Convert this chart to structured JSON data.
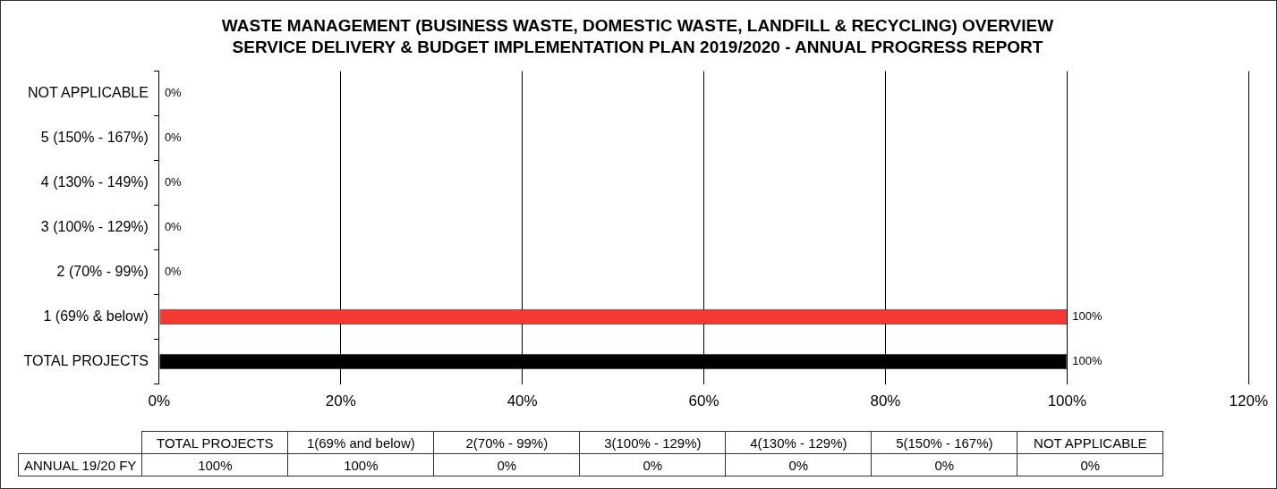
{
  "chart_data": {
    "type": "bar",
    "orientation": "horizontal",
    "title": "WASTE MANAGEMENT (BUSINESS WASTE, DOMESTIC WASTE, LANDFILL & RECYCLING) OVERVIEW",
    "subtitle": "SERVICE DELIVERY & BUDGET IMPLEMENTATION PLAN 2019/2020 - ANNUAL PROGRESS REPORT",
    "categories": [
      "NOT APPLICABLE",
      "5 (150% - 167%)",
      "4 (130% - 149%)",
      "3 (100% - 129%)",
      "2 (70% - 99%)",
      "1 (69% & below)",
      "TOTAL PROJECTS"
    ],
    "values": [
      0,
      0,
      0,
      0,
      0,
      100,
      100
    ],
    "colors": [
      "#000000",
      "#000000",
      "#000000",
      "#000000",
      "#000000",
      "#f03a32",
      "#000000"
    ],
    "value_labels": [
      "0%",
      "0%",
      "0%",
      "0%",
      "0%",
      "100%",
      "100%"
    ],
    "xlim": [
      0,
      120
    ],
    "xticks": [
      {
        "value": 0,
        "label": "0%"
      },
      {
        "value": 20,
        "label": "20%"
      },
      {
        "value": 40,
        "label": "40%"
      },
      {
        "value": 60,
        "label": "60%"
      },
      {
        "value": 80,
        "label": "80%"
      },
      {
        "value": 100,
        "label": "100%"
      },
      {
        "value": 120,
        "label": "120%"
      }
    ],
    "grid": "x",
    "legend": false,
    "annotations": [
      "ANNUAL 19/20 FY",
      "TOTAL PROJECTS",
      "1(69% and below)",
      "2(70% - 99%)",
      "3(100% - 129%)",
      "4(130% - 129%)",
      "5(150% - 167%)",
      "NOT APPLICABLE"
    ]
  }
}
